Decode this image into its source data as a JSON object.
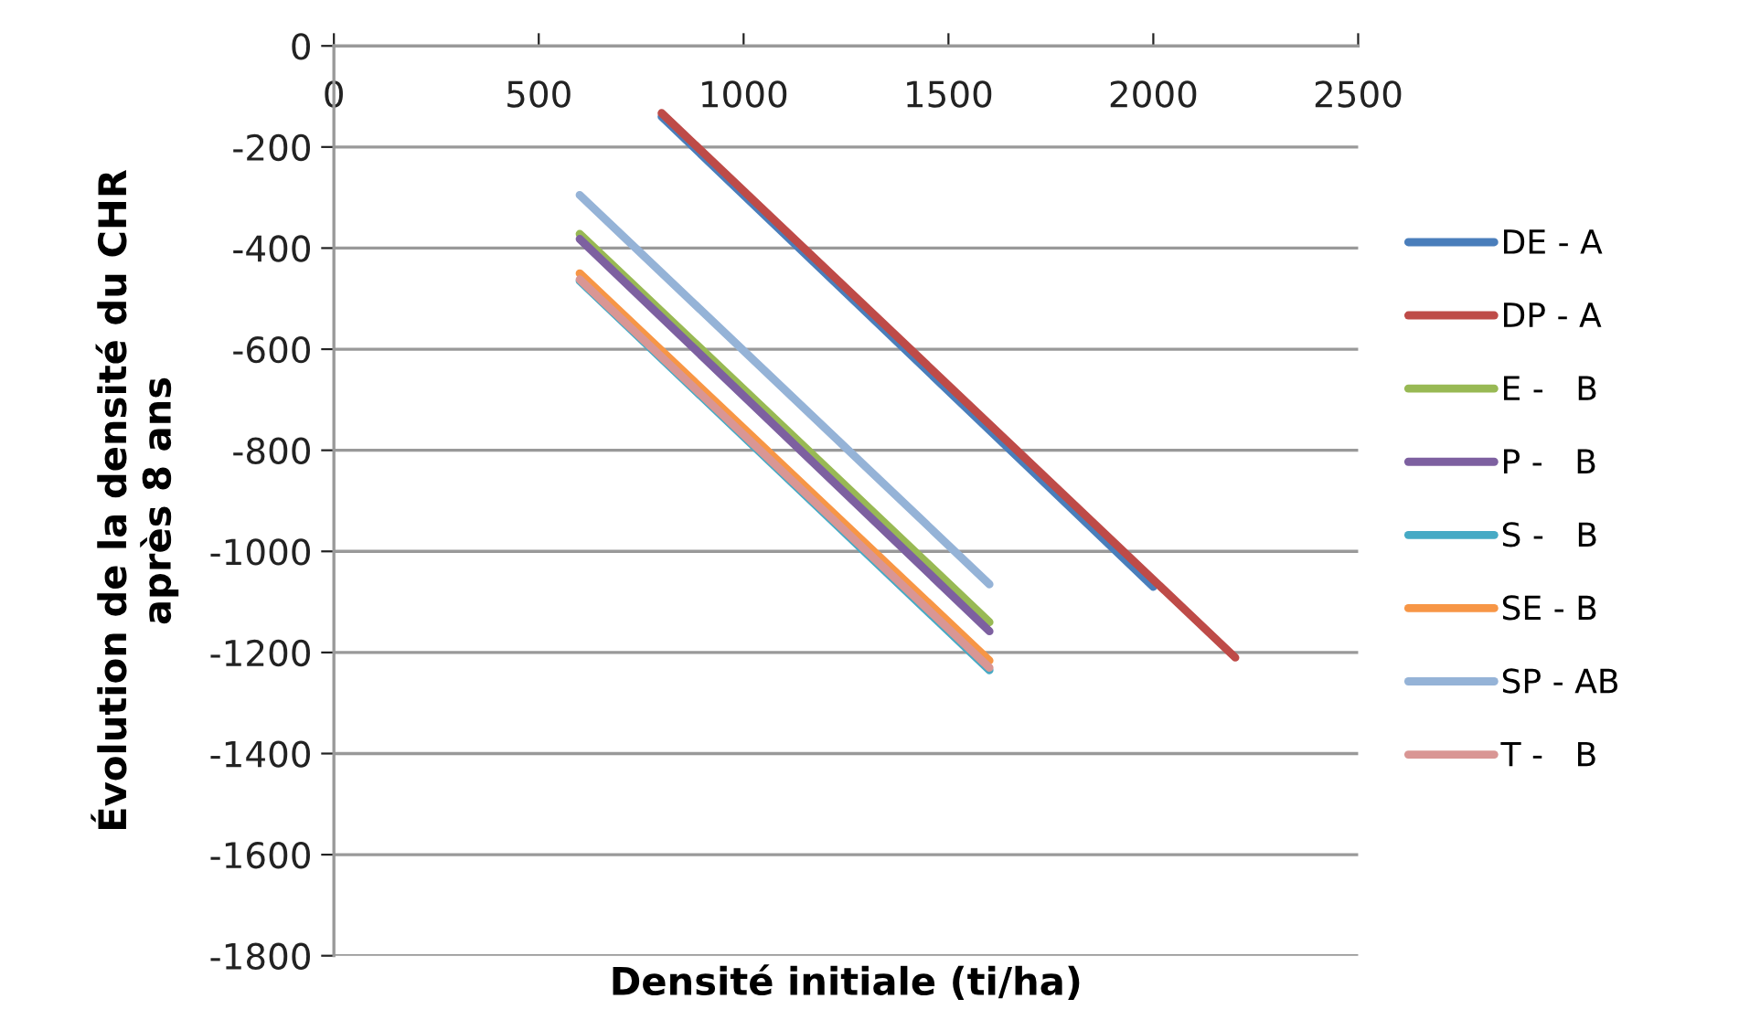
{
  "chart_data": {
    "type": "line",
    "xlabel": "Densité initiale (ti/ha)",
    "ylabel": "Évolution de la densité du CHR\naprès 8 ans",
    "xlim": [
      0,
      2500
    ],
    "xticks": [
      0,
      500,
      1000,
      1500,
      2000,
      2500
    ],
    "ylim": [
      -1800,
      0
    ],
    "yticks": [
      -1800,
      -1600,
      -1400,
      -1200,
      -1000,
      -800,
      -600,
      -400,
      -200,
      0
    ],
    "grid": "y",
    "legend": "right",
    "marker": "none",
    "line_style": "solid",
    "series": [
      {
        "name": "DE - A",
        "color": "#4a7ebb",
        "x": [
          800,
          2000
        ],
        "values": [
          -140,
          -1070
        ]
      },
      {
        "name": "DP - A",
        "color": "#be4b48",
        "x": [
          800,
          2200
        ],
        "values": [
          -133,
          -1210
        ]
      },
      {
        "name": "E -   B",
        "color": "#98b954",
        "x": [
          600,
          1600
        ],
        "values": [
          -372,
          -1140
        ]
      },
      {
        "name": "P -   B",
        "color": "#7d60a0",
        "x": [
          600,
          1600
        ],
        "values": [
          -382,
          -1158
        ]
      },
      {
        "name": "S -   B",
        "color": "#46aac5",
        "x": [
          600,
          1600
        ],
        "values": [
          -465,
          -1235
        ]
      },
      {
        "name": "SE - B",
        "color": "#f79646",
        "x": [
          600,
          1600
        ],
        "values": [
          -450,
          -1216
        ]
      },
      {
        "name": "SP - AB",
        "color": "#95b3d7",
        "x": [
          600,
          1600
        ],
        "values": [
          -295,
          -1065
        ]
      },
      {
        "name": "T -   B",
        "color": "#d99694",
        "x": [
          600,
          1600
        ],
        "values": [
          -462,
          -1230
        ]
      }
    ]
  }
}
